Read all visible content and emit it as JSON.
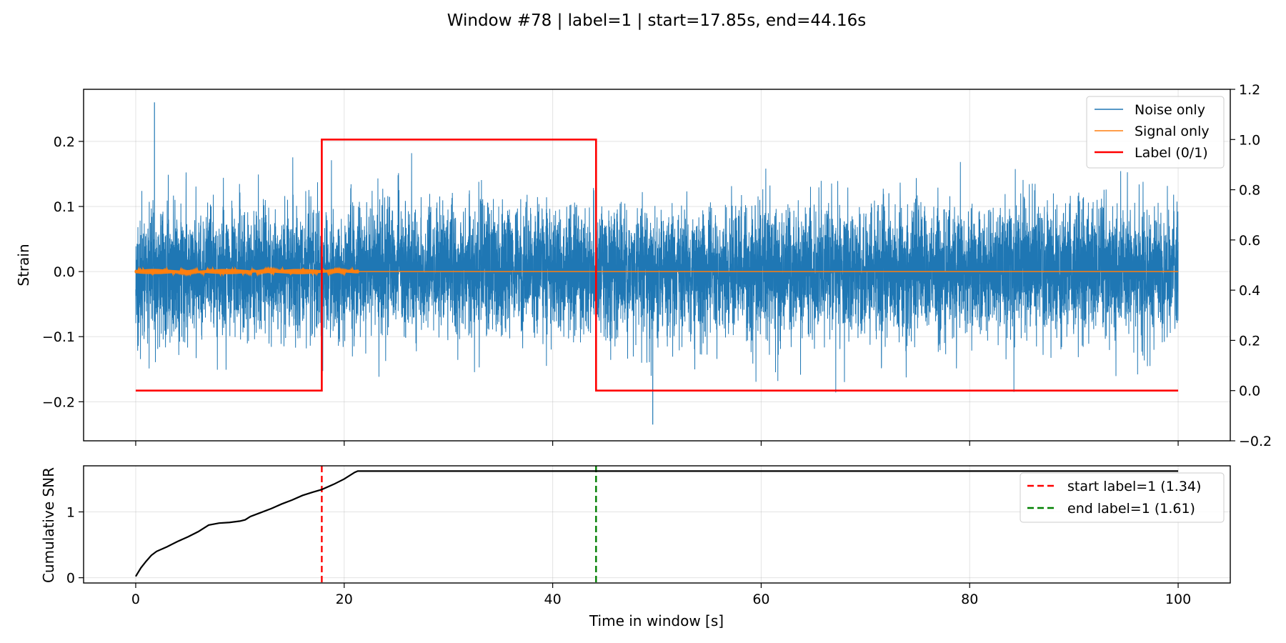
{
  "figure": {
    "title": "Window #78 | label=1 | start=17.85s, end=44.16s"
  },
  "colors": {
    "noise": "#1f77b4",
    "signal": "#ff7f0e",
    "label": "#ff0000",
    "snr": "#000000",
    "start_line": "#ff0000",
    "end_line": "#008000"
  },
  "chart_data": [
    {
      "type": "line",
      "ylabel": "Strain",
      "xlim": [
        -5,
        105
      ],
      "ylim": [
        -0.26,
        0.28
      ],
      "ylim_right": [
        -0.2,
        1.2
      ],
      "xticks": [
        0,
        20,
        40,
        60,
        80,
        100
      ],
      "yticks": [
        -0.2,
        -0.1,
        0.0,
        0.1,
        0.2
      ],
      "yticks_right": [
        -0.2,
        0.0,
        0.2,
        0.4,
        0.6,
        0.8,
        1.0,
        1.2
      ],
      "grid": true,
      "legend_position": "top-right",
      "series": [
        {
          "name": "Noise only",
          "kind": "noise",
          "x_range": [
            0,
            100
          ],
          "typical_amplitude": 0.05,
          "max": 0.26,
          "min": -0.235
        },
        {
          "name": "Signal only",
          "kind": "signal",
          "x_range": [
            0,
            100
          ],
          "active_range": [
            0,
            21.3
          ],
          "amplitude": 0.004
        },
        {
          "name": "Label (0/1)",
          "kind": "step",
          "axis": "right",
          "x": [
            0,
            17.85,
            17.85,
            44.16,
            44.16,
            100
          ],
          "y": [
            0,
            0,
            1,
            1,
            0,
            0
          ]
        }
      ]
    },
    {
      "type": "line",
      "xlabel": "Time in window [s]",
      "ylabel": "Cumulative SNR",
      "xlim": [
        -5,
        105
      ],
      "ylim": [
        -0.08,
        1.7
      ],
      "xticks": [
        0,
        20,
        40,
        60,
        80,
        100
      ],
      "yticks": [
        0,
        1
      ],
      "grid": true,
      "legend_position": "top-right",
      "series": [
        {
          "name": "cumulative-snr",
          "x": [
            0,
            0.5,
            1,
            1.5,
            2,
            3,
            4,
            5,
            6,
            7,
            8,
            9,
            10,
            10.5,
            11,
            12,
            13,
            14,
            15,
            16,
            17,
            17.85,
            19,
            20,
            21,
            21.3,
            30,
            40,
            50,
            60,
            70,
            80,
            90,
            100
          ],
          "y": [
            0.02,
            0.15,
            0.25,
            0.34,
            0.4,
            0.47,
            0.55,
            0.62,
            0.7,
            0.8,
            0.83,
            0.84,
            0.86,
            0.88,
            0.93,
            0.99,
            1.05,
            1.12,
            1.18,
            1.25,
            1.3,
            1.34,
            1.42,
            1.5,
            1.6,
            1.62,
            1.62,
            1.62,
            1.62,
            1.62,
            1.62,
            1.62,
            1.62,
            1.62
          ]
        }
      ],
      "vlines": [
        {
          "name": "start label=1 (1.34)",
          "x": 17.85,
          "style": "dashed",
          "color": "#ff0000"
        },
        {
          "name": "end label=1 (1.61)",
          "x": 44.16,
          "style": "dashed",
          "color": "#008000"
        }
      ]
    }
  ]
}
